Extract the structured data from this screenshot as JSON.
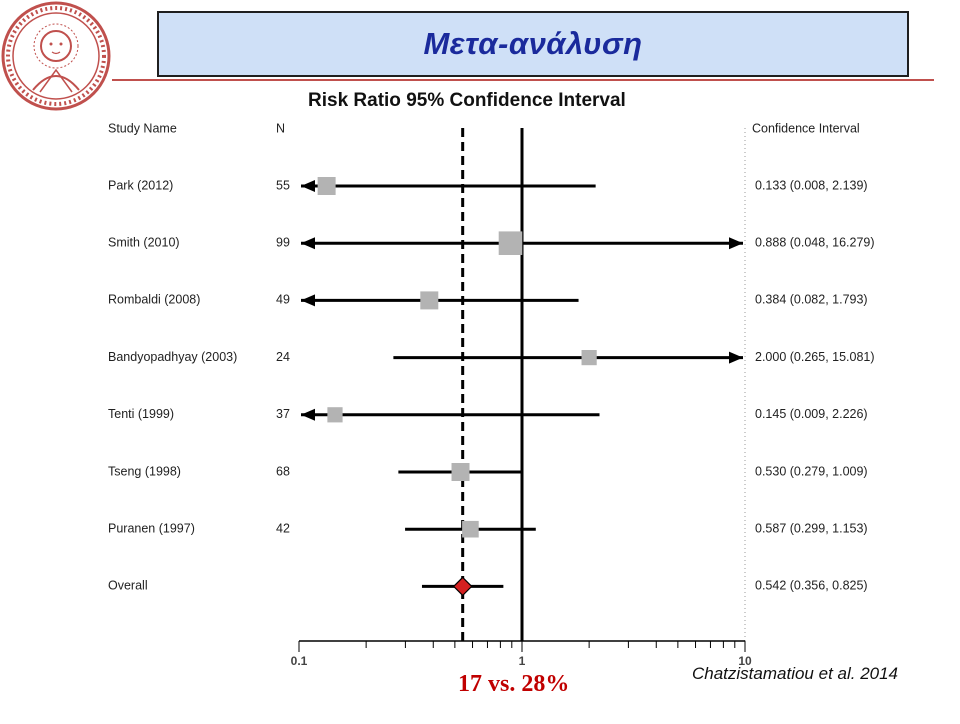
{
  "slide": {
    "title": "Μετα-ανάλυση",
    "note": "17 vs. 28%",
    "credit": "Chatzistamatiou et al. 2014",
    "accent_color": "#c0504d",
    "title_color": "#1a2a9c",
    "title_bg": "#cfe0f7",
    "logo_icon": "university-seal-icon"
  },
  "chart_data": {
    "type": "forest",
    "title": "Risk Ratio 95% Confidence Interval",
    "headers": {
      "study": "Study Name",
      "n": "N",
      "ci": "Confidence Interval"
    },
    "x_scale": "log",
    "xlim": [
      0.1,
      10
    ],
    "x_ticks": [
      0.1,
      1,
      10
    ],
    "x_tick_labels": [
      "0.1",
      "1",
      "10"
    ],
    "reference_line": 1,
    "pooled_line": 0.542,
    "studies": [
      {
        "name": "Park (2012)",
        "n": "55",
        "rr": 0.133,
        "lo": 0.008,
        "hi": 2.139,
        "ci_text": "0.133 (0.008, 2.139)",
        "weight": 1.0
      },
      {
        "name": "Smith (2010)",
        "n": "99",
        "rr": 0.888,
        "lo": 0.048,
        "hi": 16.279,
        "ci_text": "0.888 (0.048, 16.279)",
        "weight": 1.4
      },
      {
        "name": "Rombaldi (2008)",
        "n": "49",
        "rr": 0.384,
        "lo": 0.082,
        "hi": 1.793,
        "ci_text": "0.384 (0.082, 1.793)",
        "weight": 1.0
      },
      {
        "name": "Bandyopadhyay (2003)",
        "n": "24",
        "rr": 2.0,
        "lo": 0.265,
        "hi": 15.081,
        "ci_text": "2.000 (0.265, 15.081)",
        "weight": 0.8
      },
      {
        "name": "Tenti (1999)",
        "n": "37",
        "rr": 0.145,
        "lo": 0.009,
        "hi": 2.226,
        "ci_text": "0.145 (0.009, 2.226)",
        "weight": 0.8
      },
      {
        "name": "Tseng (1998)",
        "n": "68",
        "rr": 0.53,
        "lo": 0.279,
        "hi": 1.009,
        "ci_text": "0.530 (0.279, 1.009)",
        "weight": 1.0
      },
      {
        "name": "Puranen (1997)",
        "n": "42",
        "rr": 0.587,
        "lo": 0.299,
        "hi": 1.153,
        "ci_text": "0.587 (0.299, 1.153)",
        "weight": 0.9
      }
    ],
    "overall": {
      "name": "Overall",
      "rr": 0.542,
      "lo": 0.356,
      "hi": 0.825,
      "ci_text": "0.542 (0.356, 0.825)"
    },
    "colors": {
      "marker": "#b3b3b3",
      "line": "#000000",
      "diamond": "#d42020"
    }
  }
}
